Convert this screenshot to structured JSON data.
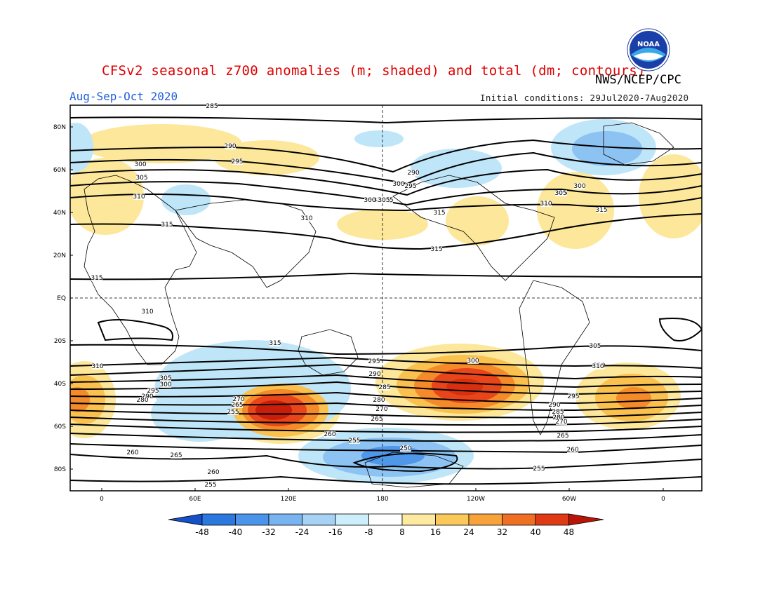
{
  "header": {
    "title": "CFSv2 seasonal z700 anomalies (m; shaded) and total (dm; contours)",
    "agency": "NWS/NCEP/CPC",
    "season": "Aug-Sep-Oct 2020",
    "initial_conditions": "Initial conditions: 29Jul2020-7Aug2020",
    "logo_text": "NOAA"
  },
  "map": {
    "lat_labels": [
      "80N",
      "60N",
      "40N",
      "20N",
      "EQ",
      "20S",
      "40S",
      "60S",
      "80S"
    ],
    "lon_labels": [
      "0",
      "60E",
      "120E",
      "180",
      "120W",
      "60W",
      "0"
    ],
    "contour_labels": [
      "285",
      "290",
      "295",
      "300",
      "305",
      "310",
      "315",
      "310",
      "315",
      "315",
      "315",
      "315",
      "310",
      "315",
      "305",
      "300",
      "295",
      "290",
      "285",
      "280",
      "270",
      "265",
      "260",
      "255",
      "250",
      "305",
      "300",
      "295",
      "290",
      "280",
      "270",
      "265",
      "255",
      "260",
      "265",
      "260",
      "255",
      "310",
      "300",
      "295",
      "300",
      "305",
      "310",
      "315",
      "300",
      "305",
      "290",
      "295",
      "285",
      "280",
      "270",
      "265",
      "260",
      "255",
      "310",
      "305",
      "290",
      "305",
      "310"
    ],
    "colors": {
      "neg_strong": "#1e6fd8",
      "neg_med": "#4f97e8",
      "neg_light": "#8cc3f3",
      "neg_faint": "#bfe5f8",
      "pos_faint": "#fce79a",
      "pos_light": "#fbc14e",
      "pos_med": "#f58a2a",
      "pos_strong": "#e8461a",
      "pos_max": "#c81e0a"
    }
  },
  "colorbar": {
    "labels": [
      "-48",
      "-40",
      "-32",
      "-24",
      "-16",
      "-8",
      "8",
      "16",
      "24",
      "32",
      "40",
      "48"
    ],
    "colors": [
      "#1450c8",
      "#2a78e0",
      "#4b94ec",
      "#78b4f2",
      "#a6d2f6",
      "#cdeefb",
      "#ffffff",
      "#fde9a0",
      "#fbc85a",
      "#f7a23a",
      "#ef6f23",
      "#e03a14",
      "#b81408"
    ]
  }
}
